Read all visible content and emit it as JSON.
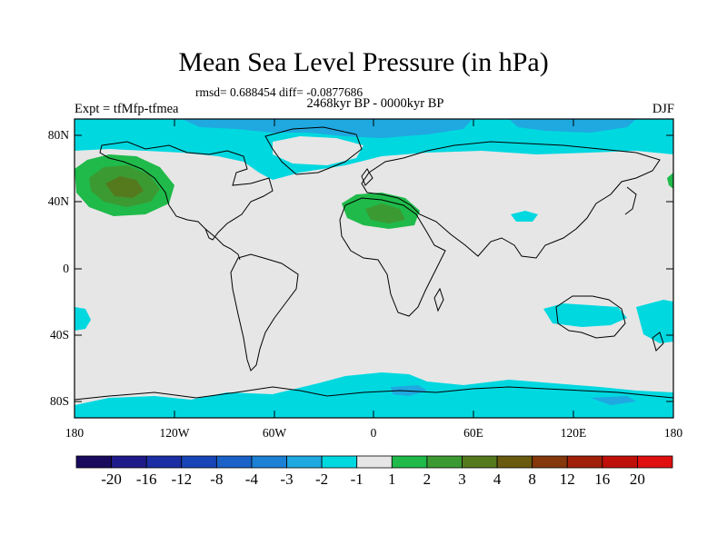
{
  "title": "Mean Sea Level Pressure (in hPa)",
  "stats_line": "rmsd= 0.688454 diff= -0.0877686",
  "period_line": "2468kyr BP - 0000kyr BP",
  "experiment_label": "Expt = tfMfp-tfmea",
  "season_label": "DJF",
  "axes": {
    "lat_ticks": [
      "80N",
      "40N",
      "0",
      "40S",
      "80S"
    ],
    "lon_ticks": [
      "180",
      "120W",
      "60W",
      "0",
      "60E",
      "120E",
      "180"
    ]
  },
  "colorbar": {
    "labels": [
      "-20",
      "-16",
      "-12",
      "-8",
      "-4",
      "-3",
      "-2",
      "-1",
      "1",
      "2",
      "3",
      "4",
      "8",
      "12",
      "16",
      "20"
    ],
    "colors": [
      "#1a0a5e",
      "#1f1a8a",
      "#1b2ea3",
      "#1846b8",
      "#1a62c8",
      "#1c80d4",
      "#20a8e0",
      "#00d8e0",
      "#e6e6e6",
      "#1fba4a",
      "#3c9a32",
      "#557a1e",
      "#6a5a10",
      "#84380c",
      "#a0200a",
      "#c0100a",
      "#e01010"
    ]
  },
  "fill_colors": {
    "neutral": "#e6e6e6",
    "cyan": "#00d8e0",
    "light_blue": "#20a8e0",
    "green": "#1fba4a",
    "dark_green": "#3c9a32",
    "olive": "#557a1e"
  }
}
